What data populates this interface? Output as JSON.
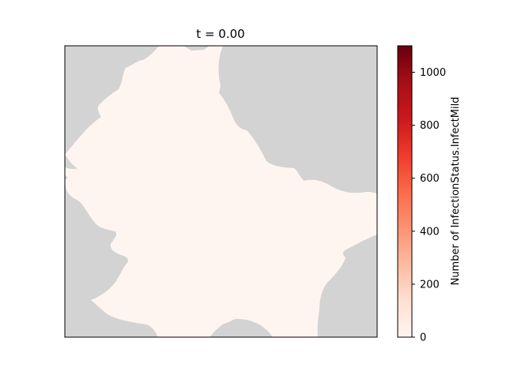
{
  "map": {
    "title": "t = 0.00",
    "region_fill_color": "#fff5f0",
    "background_color": "#d3d3d3"
  },
  "colorbar": {
    "label": "Number of InfectionStatus.InfectMild",
    "colormap": "Reds",
    "range": [
      0,
      1100
    ],
    "ticks": [
      0,
      200,
      400,
      600,
      800,
      1000
    ],
    "tick_labels": [
      "0",
      "200",
      "400",
      "600",
      "800",
      "1000"
    ]
  }
}
